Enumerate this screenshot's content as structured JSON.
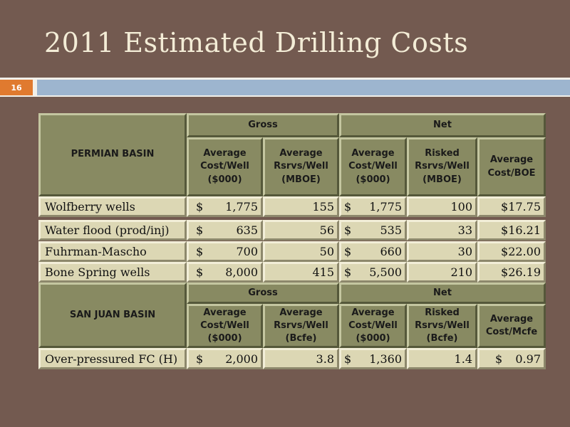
{
  "slide": {
    "title": "2011 Estimated Drilling Costs",
    "page_number": "16"
  },
  "colors": {
    "background": "#735a50",
    "header_cell": "#888a62",
    "data_cell": "#dcd7b4",
    "page_badge": "#e07a2f",
    "accent_bar": "#9db5cf"
  },
  "permian": {
    "label": "PERMIAN BASIN",
    "gross": "Gross",
    "net": "Net",
    "columns": [
      "Average Cost/Well ($000)",
      "Average Rsrvs/Well (MBOE)",
      "Average Cost/Well ($000)",
      "Risked Rsrvs/Well (MBOE)",
      "Average Cost/BOE"
    ],
    "rows": [
      {
        "name": "Wolfberry wells",
        "gross_cost_sym": "$",
        "gross_cost": "1,775",
        "gross_rsrv": "155",
        "net_cost_sym": "$",
        "net_cost": "1,775",
        "net_rsrv": "100",
        "cost_unit": "$17.75"
      },
      {
        "name": "Water flood (prod/inj)",
        "gross_cost_sym": "$",
        "gross_cost": "635",
        "gross_rsrv": "56",
        "net_cost_sym": "$",
        "net_cost": "535",
        "net_rsrv": "33",
        "cost_unit": "$16.21"
      },
      {
        "name": "Fuhrman-Mascho",
        "gross_cost_sym": "$",
        "gross_cost": "700",
        "gross_rsrv": "50",
        "net_cost_sym": "$",
        "net_cost": "660",
        "net_rsrv": "30",
        "cost_unit": "$22.00"
      },
      {
        "name": "Bone Spring wells",
        "gross_cost_sym": "$",
        "gross_cost": "8,000",
        "gross_rsrv": "415",
        "net_cost_sym": "$",
        "net_cost": "5,500",
        "net_rsrv": "210",
        "cost_unit": "$26.19"
      }
    ]
  },
  "sanjuan": {
    "label": "SAN JUAN BASIN",
    "gross": "Gross",
    "net": "Net",
    "columns": [
      "Average Cost/Well ($000)",
      "Average Rsrvs/Well (Bcfe)",
      "Average Cost/Well ($000)",
      "Risked Rsrvs/Well (Bcfe)",
      "Average Cost/Mcfe"
    ],
    "rows": [
      {
        "name": "Over-pressured FC (H)",
        "gross_cost_sym": "$",
        "gross_cost": "2,000",
        "gross_rsrv": "3.8",
        "net_cost_sym": "$",
        "net_cost": "1,360",
        "net_rsrv": "1.4",
        "cost_unit_sym": "$",
        "cost_unit": "0.97"
      }
    ]
  }
}
